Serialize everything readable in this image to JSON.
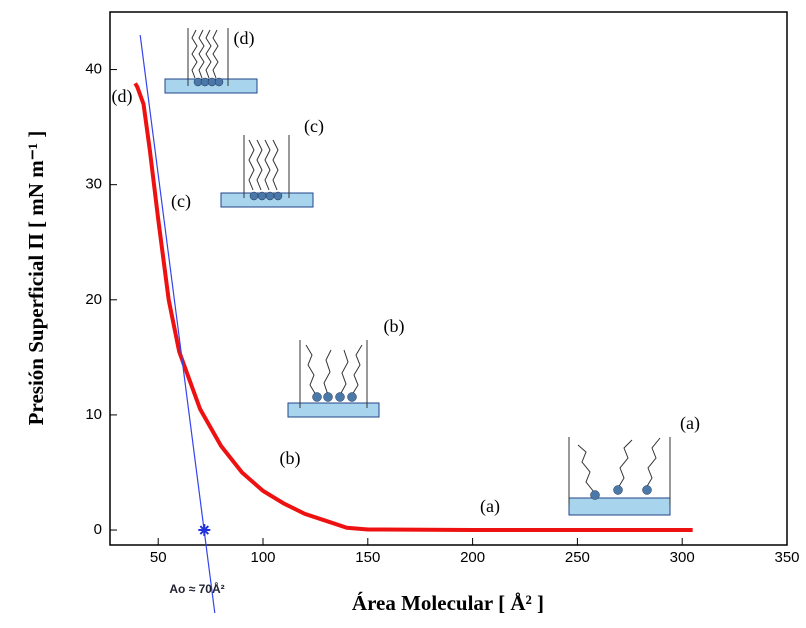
{
  "chart_data": {
    "type": "line",
    "x_label": "Área Molecular [ Å² ]",
    "y_label": "Presión Superficial Π [ mN m⁻¹ ]",
    "xlim": [
      27,
      350
    ],
    "ylim": [
      -1.3,
      45
    ],
    "xticks": [
      50,
      100,
      150,
      200,
      250,
      300,
      350
    ],
    "yticks": [
      0,
      10,
      20,
      30,
      40
    ],
    "series": [
      {
        "color": "#ee1111",
        "x": [
          39,
          40,
          43,
          46,
          50,
          55,
          60,
          70,
          80,
          90,
          100,
          110,
          120,
          130,
          140,
          150,
          200,
          305
        ],
        "y": [
          38.8,
          38.5,
          37,
          33,
          27,
          20,
          15.5,
          10.5,
          7.3,
          5,
          3.4,
          2.3,
          1.4,
          0.8,
          0.2,
          0.05,
          0,
          0
        ]
      },
      {
        "color": "#3344ee",
        "x": [
          41.4,
          77
        ],
        "y": [
          43,
          -7.2
        ]
      }
    ],
    "marker": {
      "x": 72,
      "y": 0,
      "color": "#2233dd"
    },
    "marker_label": "Ao ≈ 70Å²",
    "annotations": [
      "(d)",
      "(c)",
      "(b)",
      "(a)",
      "(d)",
      "(c)",
      "(b)",
      "(a)"
    ]
  }
}
